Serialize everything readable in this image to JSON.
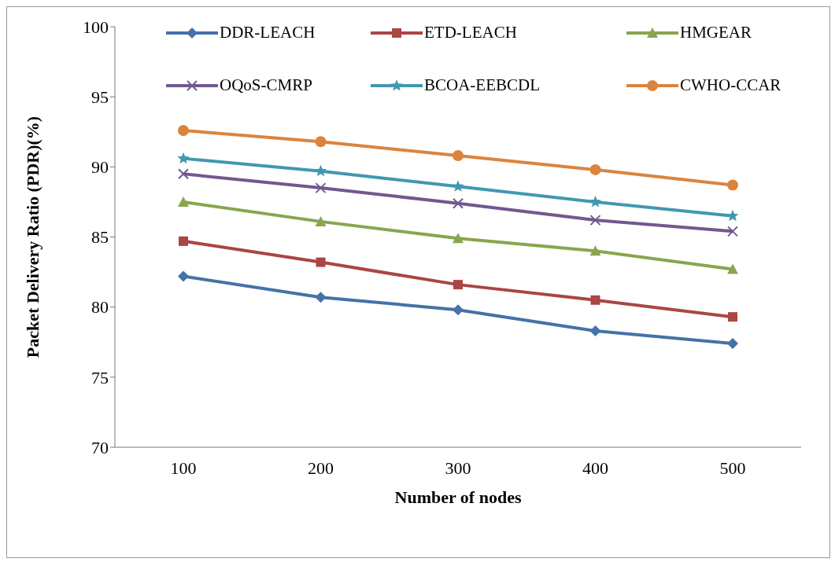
{
  "chart_data": {
    "type": "line",
    "xlabel": "Number of nodes",
    "ylabel": "Packet Delivery Ratio (PDR)(%)",
    "categories": [
      "100",
      "200",
      "300",
      "400",
      "500"
    ],
    "ylim": [
      70,
      100
    ],
    "yticks": [
      70,
      75,
      80,
      85,
      90,
      95,
      100
    ],
    "legend": "top",
    "line_style": "solid",
    "series": [
      {
        "name": "DDR-LEACH",
        "color": "#4572a7",
        "marker": "diamond",
        "values": [
          82.2,
          80.7,
          79.8,
          78.3,
          77.4
        ]
      },
      {
        "name": "ETD-LEACH",
        "color": "#aa4643",
        "marker": "square",
        "values": [
          84.7,
          83.2,
          81.6,
          80.5,
          79.3
        ]
      },
      {
        "name": "HMGEAR",
        "color": "#89a54e",
        "marker": "triangle",
        "values": [
          87.5,
          86.1,
          84.9,
          84.0,
          82.7
        ]
      },
      {
        "name": "OQoS-CMRP",
        "color": "#71588f",
        "marker": "cross",
        "values": [
          89.5,
          88.5,
          87.4,
          86.2,
          85.4
        ]
      },
      {
        "name": "BCOA-EEBCDL",
        "color": "#4198af",
        "marker": "star",
        "values": [
          90.6,
          89.7,
          88.6,
          87.5,
          86.5
        ]
      },
      {
        "name": "CWHO-CCAR",
        "color": "#db843d",
        "marker": "circle",
        "values": [
          92.6,
          91.8,
          90.8,
          89.8,
          88.7
        ]
      }
    ]
  }
}
